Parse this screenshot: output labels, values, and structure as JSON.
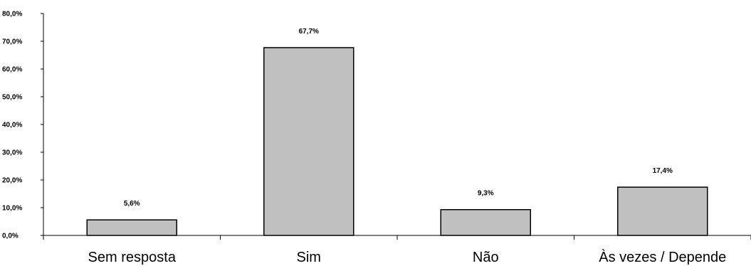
{
  "chart_data": {
    "type": "bar",
    "categories": [
      "Sem resposta",
      "Sim",
      "Não",
      "Às vezes / Depende"
    ],
    "values": [
      5.6,
      67.7,
      9.3,
      17.4
    ],
    "data_labels": [
      "5,6%",
      "67,7%",
      "9,3%",
      "17,4%"
    ],
    "y_tick_labels": [
      "0,0%",
      "10,0%",
      "20,0%",
      "30,0%",
      "40,0%",
      "50,0%",
      "60,0%",
      "70,0%",
      "80,0%"
    ],
    "ylim": [
      0,
      80
    ],
    "y_step": 10,
    "title": "",
    "xlabel": "",
    "ylabel": "",
    "grid": false,
    "legend": "none",
    "colors": {
      "bar_fill": "#c0c0c0",
      "bar_stroke": "#000000",
      "axis": "#000000"
    }
  }
}
